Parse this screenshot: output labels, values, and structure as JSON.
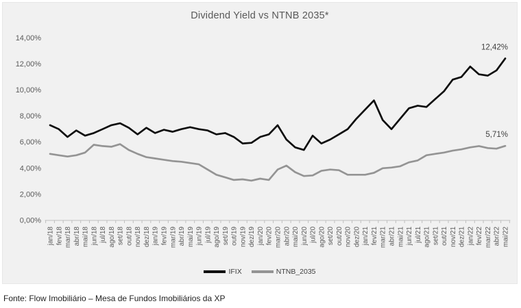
{
  "title": "Dividend Yield vs NTNB 2035*",
  "footer": "Fonte: Flow Imobiliário – Mesa de Fundos Imobiliários da XP",
  "colors": {
    "panel_bg": "#f1f1f1",
    "axis": "#bfbfbf",
    "axis_text": "#595959",
    "title_text": "#595959",
    "label_text": "#3f3f3f",
    "ifix_line": "#0d0d0d",
    "ntnb_line": "#949494"
  },
  "chart_data": {
    "type": "line",
    "title": "Dividend Yield vs NTNB 2035*",
    "xlabel": "",
    "ylabel": "",
    "ylim": [
      0,
      14
    ],
    "y_tick_step": 2,
    "grid": false,
    "legend_position": "bottom",
    "y_ticks": [
      {
        "value": 0,
        "label": "0,00%"
      },
      {
        "value": 2,
        "label": "2,00%"
      },
      {
        "value": 4,
        "label": "4,00%"
      },
      {
        "value": 6,
        "label": "6,00%"
      },
      {
        "value": 8,
        "label": "8,00%"
      },
      {
        "value": 10,
        "label": "10,00%"
      },
      {
        "value": 12,
        "label": "12,00%"
      },
      {
        "value": 14,
        "label": "14,00%"
      }
    ],
    "categories": [
      "jan/18",
      "fev/18",
      "mar/18",
      "abr/18",
      "mai/18",
      "jun/18",
      "jul/18",
      "ago/18",
      "set/18",
      "out/18",
      "nov/18",
      "dez/18",
      "jan/19",
      "fev/19",
      "mar/19",
      "abr/19",
      "mai/19",
      "jun/19",
      "jul/19",
      "ago/19",
      "set/19",
      "out/19",
      "nov/19",
      "dez/19",
      "jan/20",
      "fev/20",
      "mar/20",
      "abr/20",
      "mai/20",
      "jun/20",
      "jul/20",
      "ago/20",
      "set/20",
      "out/20",
      "nov/20",
      "dez/20",
      "jan/21",
      "fev/21",
      "mar/21",
      "abr/21",
      "mai/21",
      "jun/21",
      "jul/21",
      "ago/21",
      "set/21",
      "out/21",
      "nov/21",
      "dez/21",
      "jan/22",
      "fev/22",
      "mar/22",
      "abr/22",
      "mai/22"
    ],
    "series": [
      {
        "name": "IFIX",
        "color": "#0d0d0d",
        "end_label": "12,42%",
        "values": [
          7.3,
          7.0,
          6.4,
          6.9,
          6.5,
          6.7,
          7.0,
          7.3,
          7.45,
          7.1,
          6.6,
          7.1,
          6.7,
          6.95,
          6.8,
          7.0,
          7.15,
          7.0,
          6.9,
          6.6,
          6.7,
          6.4,
          5.9,
          5.95,
          6.4,
          6.6,
          7.3,
          6.2,
          5.6,
          5.4,
          6.5,
          5.9,
          6.2,
          6.6,
          7.0,
          7.8,
          8.5,
          9.2,
          7.7,
          7.0,
          7.8,
          8.6,
          8.8,
          8.7,
          9.3,
          9.9,
          10.8,
          11.0,
          11.8,
          11.2,
          11.1,
          11.5,
          12.42
        ]
      },
      {
        "name": "NTNB_2035",
        "color": "#949494",
        "end_label": "5,71%",
        "values": [
          5.1,
          5.0,
          4.9,
          5.0,
          5.2,
          5.8,
          5.7,
          5.65,
          5.85,
          5.4,
          5.1,
          4.85,
          4.75,
          4.65,
          4.55,
          4.5,
          4.4,
          4.3,
          3.9,
          3.5,
          3.3,
          3.1,
          3.15,
          3.05,
          3.2,
          3.1,
          3.9,
          4.2,
          3.7,
          3.4,
          3.45,
          3.8,
          3.9,
          3.85,
          3.5,
          3.5,
          3.5,
          3.65,
          4.0,
          4.05,
          4.15,
          4.45,
          4.6,
          5.0,
          5.1,
          5.2,
          5.35,
          5.45,
          5.6,
          5.7,
          5.55,
          5.5,
          5.71
        ]
      }
    ]
  },
  "legend": {
    "ifix_label": "IFIX",
    "ntnb_label": "NTNB_2035"
  }
}
